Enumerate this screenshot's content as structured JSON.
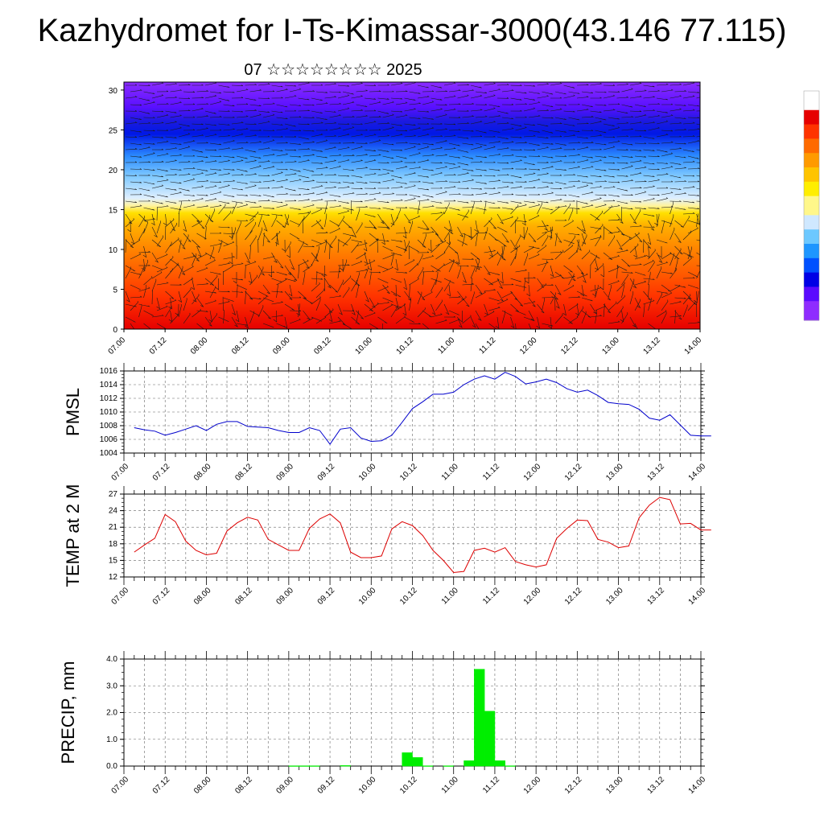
{
  "title": "Kazhydromet for I-Ts-Kimassar-3000(43.146 77.115)",
  "subtitle": "07 ☆☆☆☆☆☆☆☆ 2025",
  "chart_data": [
    {
      "type": "heatmap",
      "name": "vertical temperature / wind cross-section",
      "xlabel": "",
      "ylabel": "",
      "x_tick_labels": [
        "07.00",
        "07.12",
        "08.00",
        "08.12",
        "09.00",
        "09.12",
        "10.00",
        "10.12",
        "11.00",
        "11.12",
        "12.00",
        "12.12",
        "13.00",
        "13.12",
        "14.00"
      ],
      "y_ticks": [
        0,
        5,
        10,
        15,
        20,
        25,
        30
      ],
      "ylim": [
        0,
        31
      ],
      "colorbar": [
        "#ffffff",
        "#e60000",
        "#ff3300",
        "#ff6a00",
        "#ff9a00",
        "#ffc400",
        "#ffee00",
        "#fff78a",
        "#cfe8ff",
        "#6cc8ff",
        "#1e96ff",
        "#0050ff",
        "#0000e6",
        "#5a0aff",
        "#8f2cff"
      ],
      "legend_position": "right"
    },
    {
      "type": "line",
      "ylabel": "PMSL",
      "x_tick_labels": [
        "07.00",
        "07.12",
        "08.00",
        "08.12",
        "09.00",
        "09.12",
        "10.00",
        "10.12",
        "11.00",
        "11.12",
        "12.00",
        "12.12",
        "13.00",
        "13.12",
        "14.00"
      ],
      "y_ticks": [
        1004,
        1006,
        1008,
        1010,
        1012,
        1014,
        1016
      ],
      "ylim": [
        1004,
        1016
      ],
      "grid": true,
      "color": "#0000cc",
      "hours": [
        0,
        3,
        6,
        9,
        12,
        15,
        18,
        21,
        24,
        27,
        30,
        33,
        36,
        39,
        42,
        45,
        48,
        51,
        54,
        57,
        60,
        63,
        66,
        69,
        72,
        75,
        78,
        81,
        84,
        87,
        90,
        93,
        96,
        99,
        102,
        105,
        108,
        111,
        114,
        117,
        120,
        123,
        126,
        129,
        132,
        135,
        138,
        141,
        144,
        147,
        150,
        153,
        156,
        159,
        162,
        165,
        168
      ],
      "values": [
        1007.7,
        1007.4,
        1007.2,
        1006.6,
        1007.0,
        1007.5,
        1008.0,
        1007.3,
        1008.2,
        1008.6,
        1008.6,
        1007.9,
        1007.8,
        1007.7,
        1007.3,
        1007.0,
        1007.0,
        1007.7,
        1007.3,
        1005.3,
        1007.5,
        1007.7,
        1006.2,
        1005.7,
        1005.8,
        1006.6,
        1008.5,
        1010.5,
        1011.5,
        1012.6,
        1012.6,
        1012.9,
        1014.0,
        1014.8,
        1015.3,
        1014.8,
        1015.8,
        1015.2,
        1014.1,
        1014.4,
        1014.8,
        1014.3,
        1013.4,
        1012.9,
        1013.2,
        1012.4,
        1011.4,
        1011.2,
        1011.1,
        1010.4,
        1009.1,
        1008.8,
        1009.6,
        1008.1,
        1006.6,
        1006.5,
        1006.5
      ]
    },
    {
      "type": "line",
      "ylabel": "TEMP at 2 M",
      "x_tick_labels": [
        "07.00",
        "07.12",
        "08.00",
        "08.12",
        "09.00",
        "09.12",
        "10.00",
        "10.12",
        "11.00",
        "11.12",
        "12.00",
        "12.12",
        "13.00",
        "13.12",
        "14.00"
      ],
      "y_ticks": [
        12,
        15,
        18,
        21,
        24,
        27
      ],
      "ylim": [
        12,
        27
      ],
      "grid": true,
      "color": "#dd0000",
      "hours": [
        0,
        3,
        6,
        9,
        12,
        15,
        18,
        21,
        24,
        27,
        30,
        33,
        36,
        39,
        42,
        45,
        48,
        51,
        54,
        57,
        60,
        63,
        66,
        69,
        72,
        75,
        78,
        81,
        84,
        87,
        90,
        93,
        96,
        99,
        102,
        105,
        108,
        111,
        114,
        117,
        120,
        123,
        126,
        129,
        132,
        135,
        138,
        141,
        144,
        147,
        150,
        153,
        156,
        159,
        162,
        165,
        168
      ],
      "values": [
        16.5,
        17.8,
        19.0,
        23.3,
        22.0,
        18.5,
        16.8,
        16.0,
        16.3,
        20.3,
        21.8,
        22.8,
        22.3,
        18.8,
        17.8,
        16.8,
        16.8,
        20.8,
        22.5,
        23.4,
        21.8,
        16.5,
        15.5,
        15.5,
        15.8,
        20.7,
        22.0,
        21.3,
        19.5,
        16.8,
        15.0,
        12.8,
        13.0,
        16.8,
        17.2,
        16.5,
        17.3,
        14.8,
        14.2,
        13.8,
        14.2,
        19.0,
        20.8,
        22.3,
        22.2,
        18.8,
        18.3,
        17.3,
        17.6,
        22.7,
        25.0,
        26.4,
        26.0,
        21.6,
        21.7,
        20.5,
        20.5
      ]
    },
    {
      "type": "bar",
      "ylabel": "PRECIP, mm",
      "x_tick_labels": [
        "07.00",
        "07.12",
        "08.00",
        "08.12",
        "09.00",
        "09.12",
        "10.00",
        "10.12",
        "11.00",
        "11.12",
        "12.00",
        "12.12",
        "13.00",
        "13.12",
        "14.00"
      ],
      "y_ticks": [
        "0.0",
        "1.0",
        "2.0",
        "3.0",
        "4.0"
      ],
      "ylim": [
        0,
        4
      ],
      "grid": true,
      "color": "#00ee00",
      "bar_hours": 3,
      "start_hours": [
        48,
        51,
        54,
        63,
        81,
        84,
        87,
        93,
        99,
        102,
        105,
        108,
        111
      ],
      "values": [
        0.01,
        0.01,
        0.01,
        0.02,
        0.5,
        0.32,
        0.01,
        0.01,
        0.2,
        3.62,
        2.05,
        0.2,
        0.01
      ]
    }
  ]
}
